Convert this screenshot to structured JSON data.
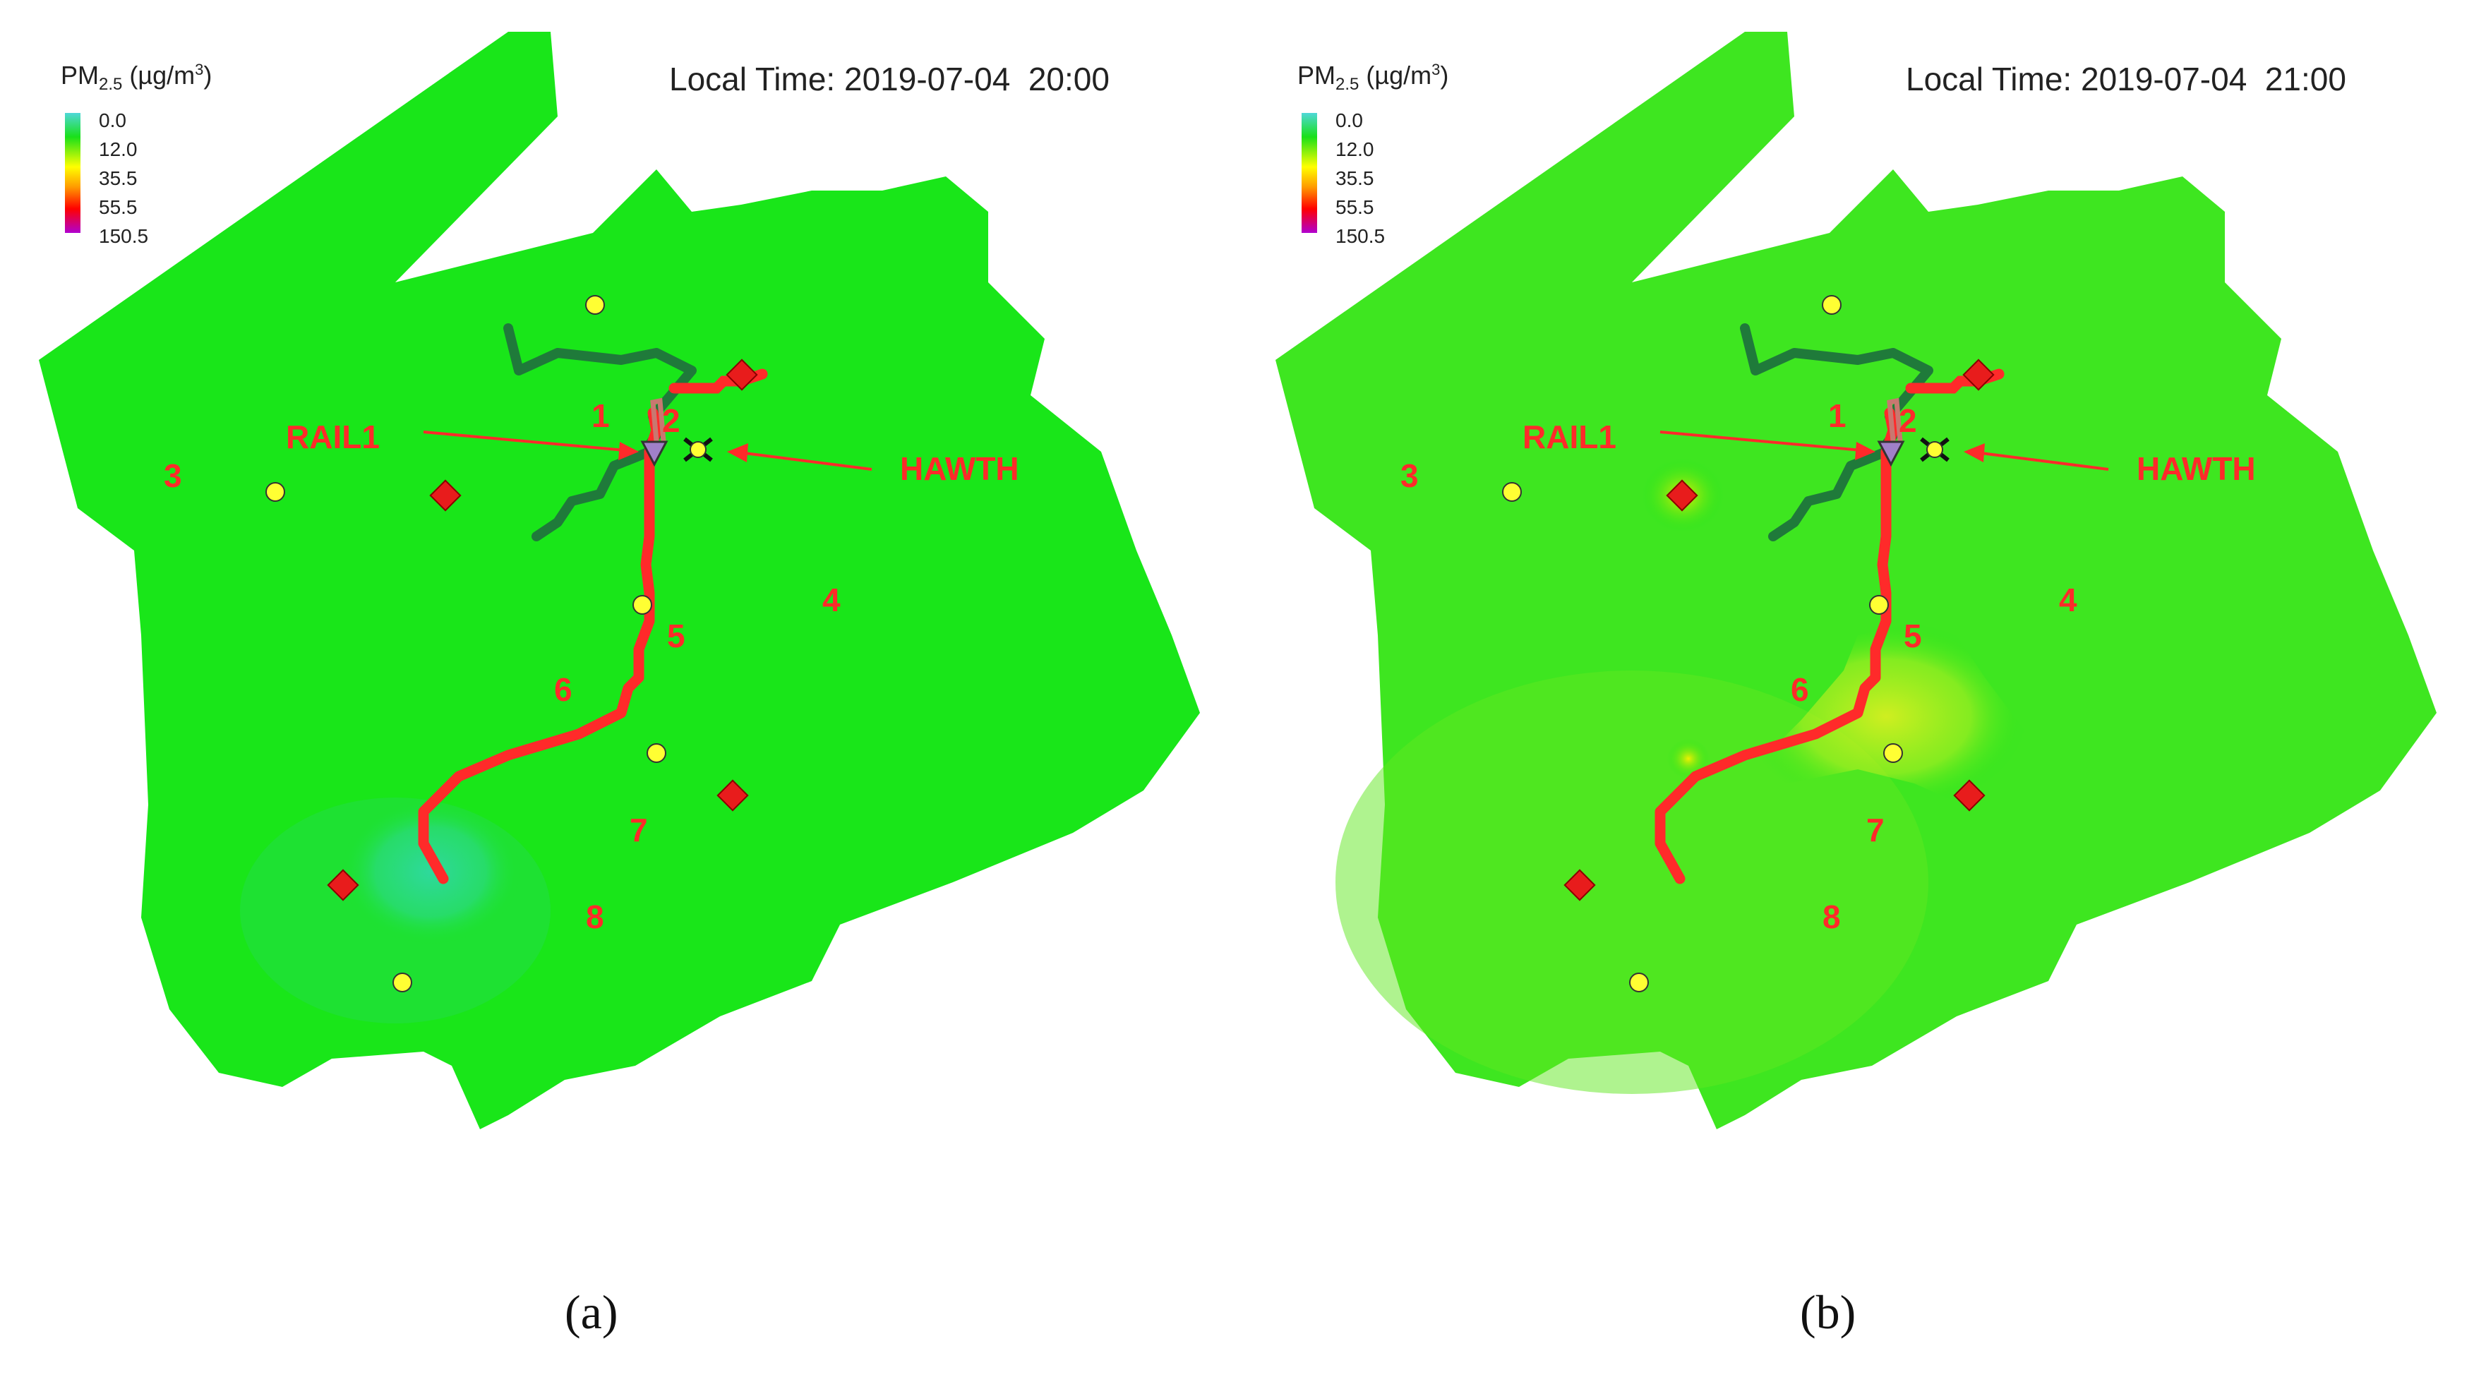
{
  "legend": {
    "title_prefix": "PM",
    "title_sub": "2.5",
    "title_unit_open": " (µg/m",
    "title_unit_sup": "3",
    "title_unit_close": ")",
    "levels": [
      "0.0",
      "12.0",
      "35.5",
      "55.5",
      "150.5"
    ]
  },
  "colors": {
    "background_field": "#19e619",
    "road": "#ff2a2a",
    "river": "#1f7a3a",
    "label": "#ff2a2a",
    "monitor": "#ffff33",
    "source": "#e81c1c"
  },
  "panels": [
    {
      "local_time": "Local Time: 2019-07-04  20:00",
      "caption": "(a)",
      "labels": {
        "rail": "RAIL1",
        "hawth": "HAWTH",
        "zones": [
          "1",
          "2",
          "3",
          "4",
          "5",
          "6",
          "7",
          "8"
        ]
      },
      "plume": "low"
    },
    {
      "local_time": "Local Time: 2019-07-04  21:00",
      "caption": "(b)",
      "labels": {
        "rail": "RAIL1",
        "hawth": "HAWTH",
        "zones": [
          "1",
          "2",
          "3",
          "4",
          "5",
          "6",
          "7",
          "8"
        ]
      },
      "plume": "elevated"
    }
  ]
}
